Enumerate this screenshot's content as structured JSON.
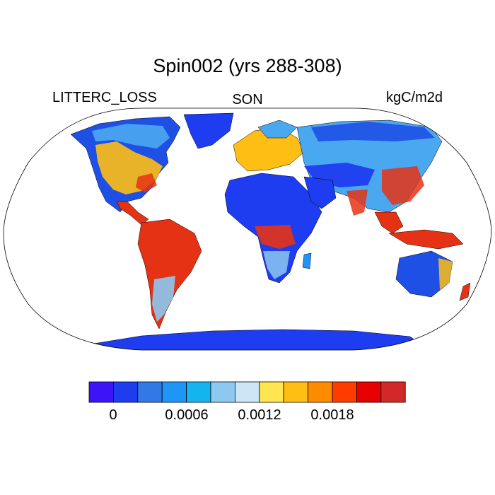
{
  "figure": {
    "title": "Spin002 (yrs 288-308)",
    "variable": "LITTERC_LOSS",
    "season": "SON",
    "units": "kgC/m2d"
  },
  "colorbar": {
    "colors": [
      "#3c14f5",
      "#1e3cf0",
      "#3278e6",
      "#1e96f5",
      "#14b4f0",
      "#8cc8f0",
      "#cce6f8",
      "#ffe650",
      "#ffbe14",
      "#ff8c00",
      "#ff3c00",
      "#e60000",
      "#d22828"
    ],
    "tick_labels": [
      "0",
      "0.0006",
      "0.0012",
      "0.0018"
    ]
  },
  "map_colors": {
    "ocean": "#ffffff",
    "outline": "#000000",
    "antarctica": "#1e3cf0",
    "desert": "#1e3cf0",
    "tundra": "#1e50e6",
    "boreal": "#4aa8f0",
    "temperate": "#ffbe14",
    "tropical": "#e63214",
    "savanna": "#8cc8f0"
  }
}
